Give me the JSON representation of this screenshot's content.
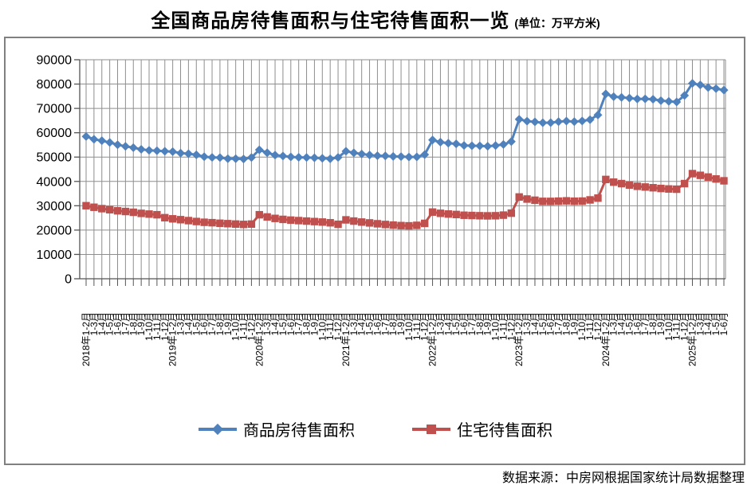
{
  "title": {
    "main": "全国商品房待售面积与住宅待售面积一览",
    "unit": "(单位：万平方米)"
  },
  "footer": {
    "source": "数据来源：中房网根据国家统计局数据整理"
  },
  "colors": {
    "series_commercial": "#4F81BD",
    "series_residential": "#C0504D",
    "gridline": "#8E8E8E",
    "axis": "#555555",
    "frame": "#808080"
  },
  "chart_data": {
    "type": "line",
    "title": "全国商品房待售面积与住宅待售面积一览",
    "unit": "万平方米",
    "xlabel": "",
    "ylabel": "",
    "ylim": [
      0,
      90000
    ],
    "yticks": [
      0,
      10000,
      20000,
      30000,
      40000,
      50000,
      60000,
      70000,
      80000,
      90000
    ],
    "grid": true,
    "legend_position": "bottom",
    "categories": [
      "2018年1-2月",
      "1-3月",
      "1-4月",
      "1-5月",
      "1-6月",
      "1-7月",
      "1-8月",
      "1-9月",
      "1-10月",
      "1-11月",
      "1-12月",
      "2019年1-2月",
      "1-3月",
      "1-4月",
      "1-5月",
      "1-6月",
      "1-7月",
      "1-8月",
      "1-9月",
      "1-10月",
      "1-11月",
      "1-12月",
      "2020年1-2月",
      "1-3月",
      "1-4月",
      "1-5月",
      "1-6月",
      "1-7月",
      "1-8月",
      "1-9月",
      "1-10月",
      "1-11月",
      "1-12月",
      "2021年1-2月",
      "1-3月",
      "1-4月",
      "1-5月",
      "1-6月",
      "1-7月",
      "1-8月",
      "1-9月",
      "1-10月",
      "1-11月",
      "1-12月",
      "2022年1-2月",
      "1-3月",
      "1-4月",
      "1-5月",
      "1-6月",
      "1-7月",
      "1-8月",
      "1-9月",
      "1-10月",
      "1-11月",
      "1-12月",
      "2023年1-2月",
      "1-3月",
      "1-4月",
      "1-5月",
      "1-6月",
      "1-7月",
      "1-8月",
      "1-9月",
      "1-10月",
      "1-11月",
      "1-12月",
      "2024年1-2月",
      "1-3月",
      "1-4月",
      "1-5月",
      "1-6月",
      "1-7月",
      "1-8月",
      "1-9月",
      "1-10月",
      "1-11月",
      "1-12月",
      "2025年1-2月",
      "1-3月",
      "1-4月",
      "1-5月",
      "1-6月"
    ],
    "series": [
      {
        "id": "commercial",
        "name": "商品房待售面积",
        "color": "#4F81BD",
        "marker": "diamond",
        "values": [
          58468,
          57329,
          56726,
          56010,
          55083,
          54428,
          53873,
          53191,
          52789,
          52627,
          52414,
          52251,
          51646,
          51380,
          50928,
          50162,
          49876,
          49784,
          49346,
          49323,
          49221,
          49821,
          52991,
          51779,
          50825,
          50438,
          50081,
          49889,
          49821,
          49690,
          49492,
          49287,
          49850,
          52425,
          51751,
          51277,
          50846,
          50545,
          50492,
          50289,
          50191,
          50049,
          50082,
          51023,
          57026,
          56113,
          55735,
          55433,
          54784,
          54655,
          54605,
          54467,
          54734,
          55203,
          56366,
          65528,
          64770,
          64487,
          64120,
          64159,
          64564,
          64795,
          64537,
          64835,
          65385,
          67295,
          75969,
          74833,
          74553,
          74256,
          73894,
          73926,
          73777,
          73177,
          72920,
          72645,
          75327,
          80290,
          79654,
          78580,
          78125,
          77531
        ]
      },
      {
        "id": "residential",
        "name": "住宅待售面积",
        "color": "#C0504D",
        "marker": "square",
        "values": [
          30016,
          29380,
          28809,
          28366,
          27926,
          27637,
          27316,
          26869,
          26576,
          26306,
          25091,
          24622,
          24281,
          23898,
          23525,
          23206,
          23035,
          22812,
          22646,
          22477,
          22324,
          22472,
          26300,
          25400,
          24800,
          24400,
          24100,
          23900,
          23700,
          23500,
          23300,
          23000,
          22379,
          24200,
          23700,
          23300,
          22950,
          22600,
          22300,
          22050,
          21850,
          21750,
          21950,
          22761,
          27400,
          26900,
          26600,
          26400,
          26100,
          26000,
          25900,
          25850,
          25900,
          26150,
          26947,
          33600,
          32757,
          32271,
          31810,
          31793,
          31895,
          32016,
          31862,
          31920,
          32403,
          33139,
          40800,
          39700,
          39100,
          38500,
          38000,
          37700,
          37400,
          37100,
          36900,
          36800,
          39100,
          43200,
          42500,
          41800,
          41000,
          40250
        ]
      }
    ]
  }
}
